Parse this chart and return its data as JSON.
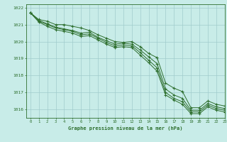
{
  "title": "Graphe pression niveau de la mer (hPa)",
  "background_color": "#c8ece8",
  "plot_bg_color": "#c8ece8",
  "grid_color": "#a0cccc",
  "line_color": "#2d6e2d",
  "spine_color": "#2d6e2d",
  "xlim": [
    -0.5,
    23
  ],
  "ylim": [
    1015.5,
    1022.2
  ],
  "yticks": [
    1016,
    1017,
    1018,
    1019,
    1020,
    1021,
    1022
  ],
  "xticks": [
    0,
    1,
    2,
    3,
    4,
    5,
    6,
    7,
    8,
    9,
    10,
    11,
    12,
    13,
    14,
    15,
    16,
    17,
    18,
    19,
    20,
    21,
    22,
    23
  ],
  "series": [
    [
      1021.7,
      1021.3,
      1021.2,
      1021.0,
      1021.0,
      1020.9,
      1020.8,
      1020.65,
      1020.4,
      1020.2,
      1020.0,
      1019.95,
      1020.0,
      1019.7,
      1019.3,
      1019.05,
      1017.55,
      1017.25,
      1017.05,
      1016.1,
      1016.1,
      1016.5,
      1016.3,
      1016.2
    ],
    [
      1021.7,
      1021.25,
      1021.05,
      1020.85,
      1020.75,
      1020.65,
      1020.5,
      1020.55,
      1020.25,
      1020.05,
      1019.85,
      1019.9,
      1019.85,
      1019.5,
      1019.1,
      1018.7,
      1017.2,
      1016.85,
      1016.65,
      1015.95,
      1015.95,
      1016.35,
      1016.15,
      1016.05
    ],
    [
      1021.7,
      1021.2,
      1021.0,
      1020.8,
      1020.7,
      1020.6,
      1020.4,
      1020.45,
      1020.2,
      1019.95,
      1019.75,
      1019.8,
      1019.75,
      1019.35,
      1018.9,
      1018.45,
      1017.0,
      1016.65,
      1016.45,
      1015.85,
      1015.85,
      1016.25,
      1016.05,
      1015.95
    ],
    [
      1021.7,
      1021.15,
      1020.9,
      1020.7,
      1020.6,
      1020.5,
      1020.3,
      1020.35,
      1020.1,
      1019.85,
      1019.65,
      1019.7,
      1019.65,
      1019.2,
      1018.75,
      1018.25,
      1016.85,
      1016.55,
      1016.3,
      1015.75,
      1015.75,
      1016.15,
      1015.95,
      1015.85
    ]
  ]
}
